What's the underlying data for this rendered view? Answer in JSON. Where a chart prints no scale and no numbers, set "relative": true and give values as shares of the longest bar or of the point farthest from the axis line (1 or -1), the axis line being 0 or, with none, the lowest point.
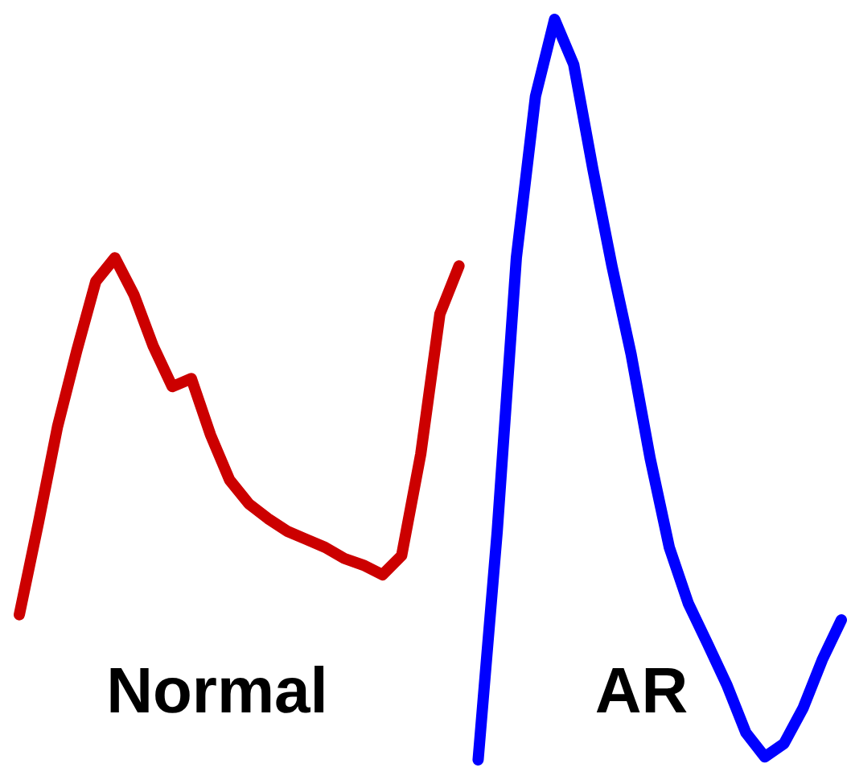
{
  "chart_data": {
    "type": "line",
    "relative": true,
    "line_style": "solid",
    "categories": [
      null,
      null,
      null,
      null,
      null,
      null,
      null,
      null,
      null,
      null,
      null,
      null,
      null,
      null,
      null,
      null,
      null,
      null,
      null,
      null,
      null,
      null,
      null,
      null,
      null,
      null,
      null,
      null,
      null,
      null,
      null,
      null,
      null,
      null,
      null,
      null,
      null,
      null,
      null,
      null,
      null,
      null,
      null,
      null
    ],
    "series": [
      {
        "name": "Normal",
        "color": "#cc0000",
        "values": [
          0.196,
          0.32,
          0.45,
          0.552,
          0.646,
          0.678,
          0.628,
          0.559,
          0.504,
          0.515,
          0.439,
          0.378,
          0.346,
          0.326,
          0.309,
          0.298,
          0.287,
          0.272,
          0.263,
          0.25,
          0.276,
          0.413,
          0.602,
          0.667,
          null,
          null,
          null,
          null,
          null,
          null,
          null,
          null,
          null,
          null,
          null,
          null,
          null,
          null,
          null,
          null,
          null,
          null,
          null,
          null
        ]
      },
      {
        "name": "AR",
        "color": "#0000ff",
        "values": [
          null,
          null,
          null,
          null,
          null,
          null,
          null,
          null,
          null,
          null,
          null,
          null,
          null,
          null,
          null,
          null,
          null,
          null,
          null,
          null,
          null,
          null,
          null,
          null,
          0,
          0.309,
          0.678,
          0.896,
          1.0,
          0.939,
          0.798,
          0.667,
          0.548,
          0.407,
          0.287,
          0.211,
          0.157,
          0.102,
          0.037,
          0.004,
          0.022,
          0.07,
          0.135,
          0.189
        ]
      }
    ]
  }
}
